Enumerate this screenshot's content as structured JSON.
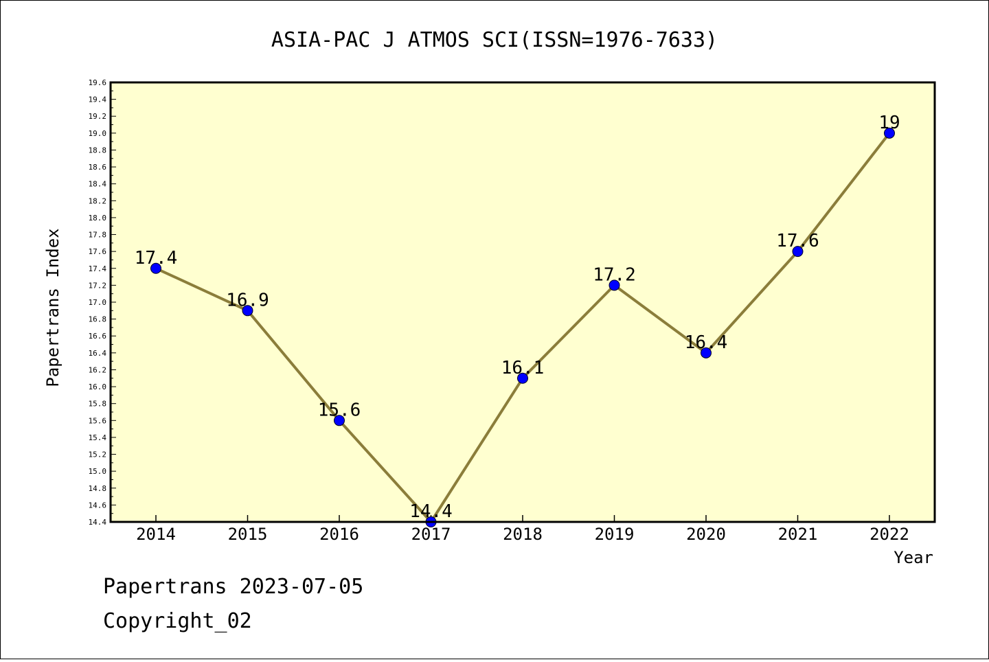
{
  "chart_data": {
    "type": "line",
    "title": "ASIA-PAC J ATMOS SCI(ISSN=1976-7633)",
    "xlabel": "Year",
    "ylabel": "Papertrans Index",
    "categories": [
      "2014",
      "2015",
      "2016",
      "2017",
      "2018",
      "2019",
      "2020",
      "2021",
      "2022"
    ],
    "values": [
      17.4,
      16.9,
      15.6,
      14.4,
      16.1,
      17.2,
      16.4,
      17.6,
      19
    ],
    "data_labels": [
      "17.4",
      "16.9",
      "15.6",
      "14.4",
      "16.1",
      "17.2",
      "16.4",
      "17.6",
      "19"
    ],
    "ylim": [
      14.4,
      19.6
    ],
    "yticks": [
      "14.4",
      "14.6",
      "14.8",
      "15.0",
      "15.2",
      "15.4",
      "15.6",
      "15.8",
      "16.0",
      "16.2",
      "16.4",
      "16.6",
      "16.8",
      "17.0",
      "17.2",
      "17.4",
      "17.6",
      "17.8",
      "18.0",
      "18.2",
      "18.4",
      "18.6",
      "18.8",
      "19.0",
      "19.2",
      "19.4",
      "19.6"
    ],
    "grid": false,
    "colors": {
      "plot_background": "#ffffd0",
      "line": "#8b7d3a",
      "marker": "#0000ff"
    }
  },
  "footer": {
    "date_line": "Papertrans 2023-07-05",
    "copyright": "Copyright_02"
  }
}
